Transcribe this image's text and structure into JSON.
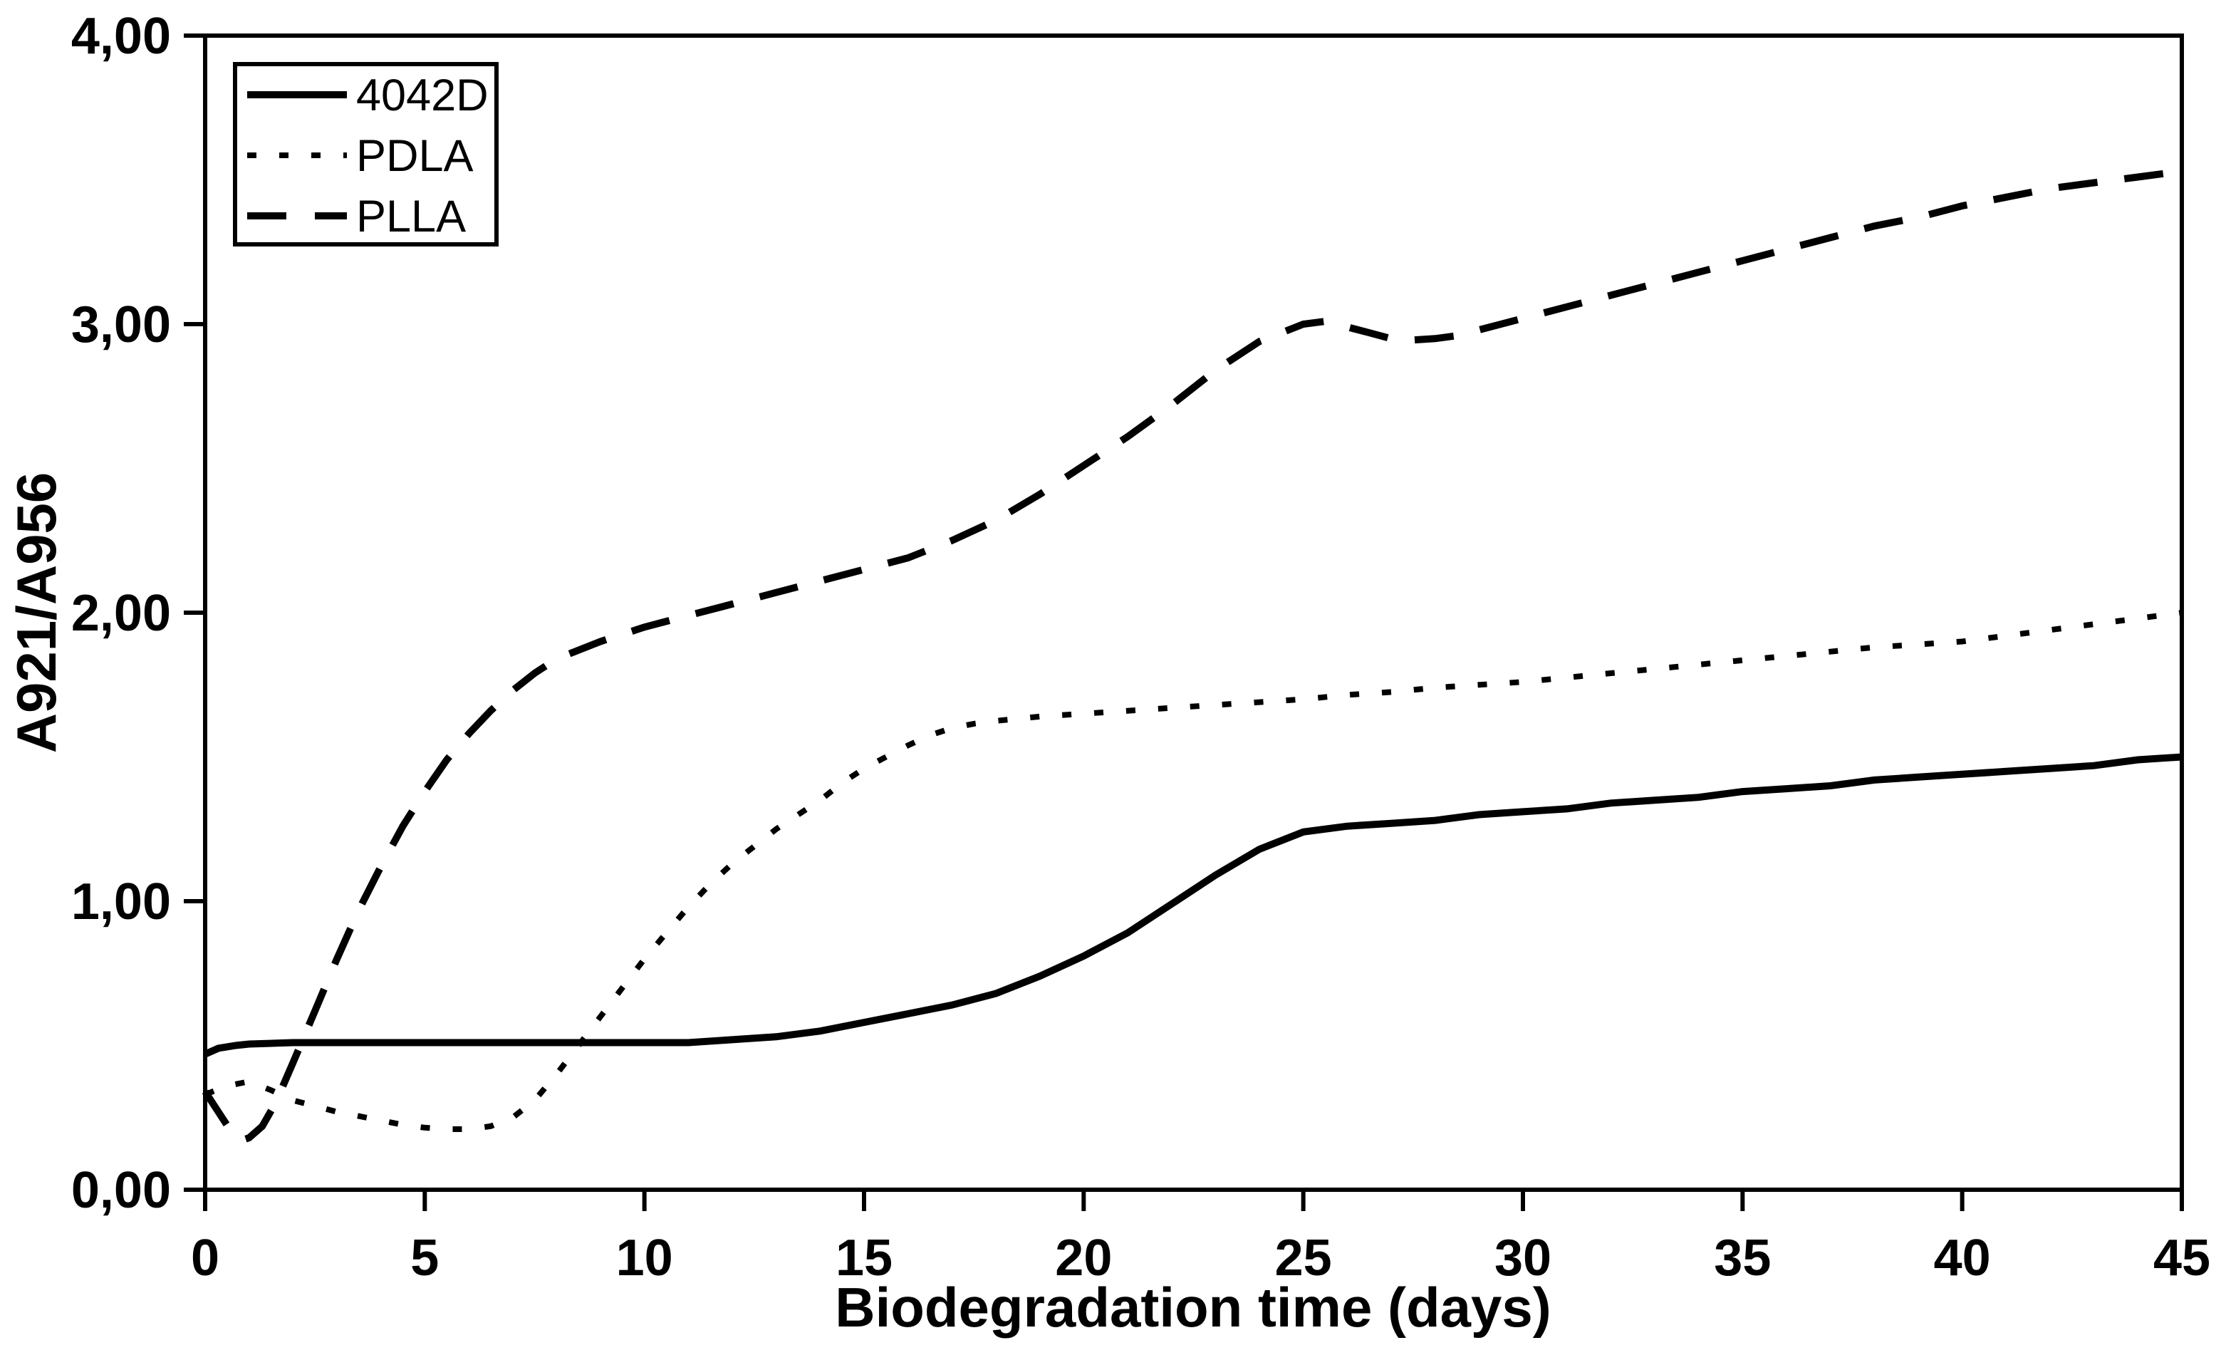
{
  "page": {
    "background": "#ffffff",
    "foreground": "#000000"
  },
  "chart_data": {
    "type": "line",
    "title": "",
    "xlabel": "Biodegradation time (days)",
    "ylabel": "A921/A956",
    "xlim": [
      0,
      45
    ],
    "ylim": [
      0,
      4
    ],
    "grid": "off",
    "legend_position": "top-left",
    "frame": "full-box",
    "axis_color": "#000000",
    "x_ticks": [
      {
        "value": 0,
        "label": "0"
      },
      {
        "value": 5,
        "label": "5"
      },
      {
        "value": 10,
        "label": "10"
      },
      {
        "value": 15,
        "label": "15"
      },
      {
        "value": 20,
        "label": "20"
      },
      {
        "value": 25,
        "label": "25"
      },
      {
        "value": 30,
        "label": "30"
      },
      {
        "value": 35,
        "label": "35"
      },
      {
        "value": 40,
        "label": "40"
      },
      {
        "value": 45,
        "label": "45"
      }
    ],
    "y_ticks": [
      {
        "value": 0,
        "label": "0,00"
      },
      {
        "value": 1,
        "label": "1,00"
      },
      {
        "value": 2,
        "label": "2,00"
      },
      {
        "value": 3,
        "label": "3,00"
      },
      {
        "value": 4,
        "label": "4,00"
      }
    ],
    "series": [
      {
        "name": "4042D",
        "line_style": "solid",
        "color": "#000000",
        "points": [
          [
            0,
            0.47
          ],
          [
            0.3,
            0.49
          ],
          [
            0.7,
            0.5
          ],
          [
            1,
            0.505
          ],
          [
            2,
            0.51
          ],
          [
            3,
            0.51
          ],
          [
            4,
            0.51
          ],
          [
            5,
            0.51
          ],
          [
            6,
            0.51
          ],
          [
            7,
            0.51
          ],
          [
            8,
            0.51
          ],
          [
            9,
            0.51
          ],
          [
            10,
            0.51
          ],
          [
            11,
            0.51
          ],
          [
            12,
            0.52
          ],
          [
            13,
            0.53
          ],
          [
            14,
            0.55
          ],
          [
            15,
            0.58
          ],
          [
            16,
            0.61
          ],
          [
            17,
            0.64
          ],
          [
            18,
            0.68
          ],
          [
            19,
            0.74
          ],
          [
            20,
            0.81
          ],
          [
            21,
            0.89
          ],
          [
            22,
            0.99
          ],
          [
            23,
            1.09
          ],
          [
            24,
            1.18
          ],
          [
            25,
            1.24
          ],
          [
            26,
            1.26
          ],
          [
            27,
            1.27
          ],
          [
            28,
            1.28
          ],
          [
            29,
            1.3
          ],
          [
            30,
            1.31
          ],
          [
            31,
            1.32
          ],
          [
            32,
            1.34
          ],
          [
            33,
            1.35
          ],
          [
            34,
            1.36
          ],
          [
            35,
            1.38
          ],
          [
            36,
            1.39
          ],
          [
            37,
            1.4
          ],
          [
            38,
            1.42
          ],
          [
            39,
            1.43
          ],
          [
            40,
            1.44
          ],
          [
            41,
            1.45
          ],
          [
            42,
            1.46
          ],
          [
            43,
            1.47
          ],
          [
            44,
            1.49
          ],
          [
            45,
            1.5
          ]
        ]
      },
      {
        "name": "PDLA",
        "line_style": "dotted",
        "color": "#000000",
        "points": [
          [
            0,
            0.33
          ],
          [
            0.5,
            0.36
          ],
          [
            1,
            0.375
          ],
          [
            1.5,
            0.345
          ],
          [
            2,
            0.31
          ],
          [
            2.5,
            0.29
          ],
          [
            3,
            0.27
          ],
          [
            3.5,
            0.255
          ],
          [
            4,
            0.24
          ],
          [
            4.5,
            0.225
          ],
          [
            5,
            0.215
          ],
          [
            5.5,
            0.21
          ],
          [
            6,
            0.21
          ],
          [
            6.5,
            0.22
          ],
          [
            7,
            0.25
          ],
          [
            7.5,
            0.31
          ],
          [
            8,
            0.4
          ],
          [
            8.5,
            0.5
          ],
          [
            9,
            0.6
          ],
          [
            9.5,
            0.7
          ],
          [
            10,
            0.8
          ],
          [
            10.5,
            0.89
          ],
          [
            11,
            0.98
          ],
          [
            11.5,
            1.06
          ],
          [
            12,
            1.13
          ],
          [
            12.5,
            1.19
          ],
          [
            13,
            1.25
          ],
          [
            13.5,
            1.3
          ],
          [
            14,
            1.35
          ],
          [
            14.5,
            1.41
          ],
          [
            15,
            1.46
          ],
          [
            15.5,
            1.5
          ],
          [
            16,
            1.54
          ],
          [
            16.5,
            1.575
          ],
          [
            17,
            1.6
          ],
          [
            17.5,
            1.615
          ],
          [
            18,
            1.625
          ],
          [
            19,
            1.64
          ],
          [
            20,
            1.65
          ],
          [
            21,
            1.66
          ],
          [
            22,
            1.67
          ],
          [
            23,
            1.68
          ],
          [
            24,
            1.69
          ],
          [
            25,
            1.7
          ],
          [
            26,
            1.715
          ],
          [
            27,
            1.725
          ],
          [
            28,
            1.74
          ],
          [
            29,
            1.75
          ],
          [
            30,
            1.76
          ],
          [
            31,
            1.775
          ],
          [
            32,
            1.79
          ],
          [
            33,
            1.805
          ],
          [
            34,
            1.82
          ],
          [
            35,
            1.835
          ],
          [
            36,
            1.85
          ],
          [
            37,
            1.865
          ],
          [
            38,
            1.88
          ],
          [
            39,
            1.89
          ],
          [
            40,
            1.9
          ],
          [
            41,
            1.92
          ],
          [
            42,
            1.94
          ],
          [
            43,
            1.96
          ],
          [
            44,
            1.98
          ],
          [
            45,
            2.0
          ]
        ]
      },
      {
        "name": "PLLA",
        "line_style": "dashed",
        "color": "#000000",
        "points": [
          [
            0,
            0.34
          ],
          [
            0.3,
            0.27
          ],
          [
            0.6,
            0.2
          ],
          [
            0.8,
            0.17
          ],
          [
            1,
            0.18
          ],
          [
            1.3,
            0.22
          ],
          [
            1.6,
            0.3
          ],
          [
            2,
            0.44
          ],
          [
            2.5,
            0.62
          ],
          [
            3,
            0.8
          ],
          [
            3.5,
            0.97
          ],
          [
            4,
            1.12
          ],
          [
            4.5,
            1.26
          ],
          [
            5,
            1.38
          ],
          [
            5.5,
            1.49
          ],
          [
            6,
            1.58
          ],
          [
            6.5,
            1.66
          ],
          [
            7,
            1.73
          ],
          [
            7.5,
            1.79
          ],
          [
            8,
            1.84
          ],
          [
            8.5,
            1.87
          ],
          [
            9,
            1.9
          ],
          [
            9.5,
            1.925
          ],
          [
            10,
            1.95
          ],
          [
            11,
            1.99
          ],
          [
            12,
            2.03
          ],
          [
            13,
            2.07
          ],
          [
            14,
            2.11
          ],
          [
            15,
            2.15
          ],
          [
            16,
            2.19
          ],
          [
            17,
            2.25
          ],
          [
            18,
            2.32
          ],
          [
            19,
            2.41
          ],
          [
            20,
            2.51
          ],
          [
            21,
            2.61
          ],
          [
            22,
            2.72
          ],
          [
            23,
            2.84
          ],
          [
            24,
            2.94
          ],
          [
            25,
            3.0
          ],
          [
            25.5,
            3.01
          ],
          [
            26,
            2.99
          ],
          [
            26.5,
            2.97
          ],
          [
            27,
            2.95
          ],
          [
            27.5,
            2.945
          ],
          [
            28,
            2.95
          ],
          [
            28.5,
            2.96
          ],
          [
            29,
            2.98
          ],
          [
            30,
            3.02
          ],
          [
            31,
            3.06
          ],
          [
            32,
            3.1
          ],
          [
            33,
            3.14
          ],
          [
            34,
            3.18
          ],
          [
            35,
            3.22
          ],
          [
            36,
            3.26
          ],
          [
            37,
            3.3
          ],
          [
            38,
            3.34
          ],
          [
            39,
            3.37
          ],
          [
            40,
            3.41
          ],
          [
            41,
            3.44
          ],
          [
            42,
            3.47
          ],
          [
            43,
            3.49
          ],
          [
            44,
            3.51
          ],
          [
            45,
            3.53
          ]
        ]
      }
    ]
  }
}
